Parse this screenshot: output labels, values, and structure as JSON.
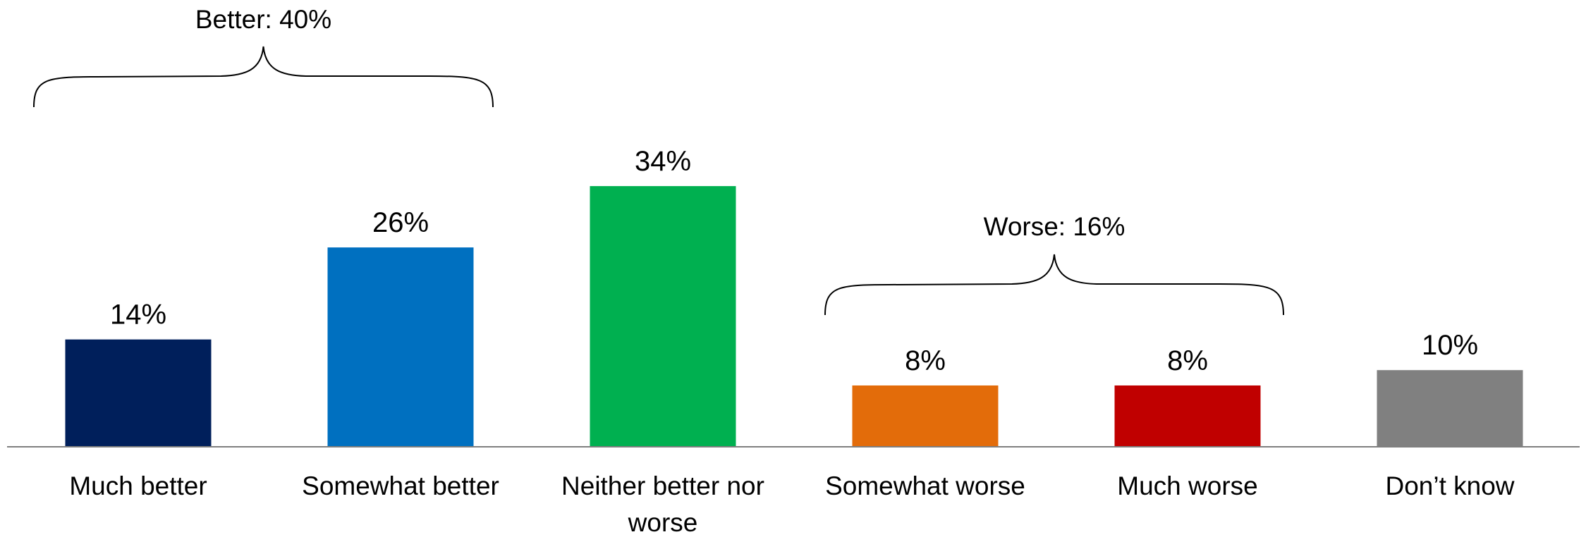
{
  "chart_data": {
    "type": "bar",
    "categories": [
      "Much better",
      "Somewhat better",
      "Neither better nor worse",
      "Somewhat worse",
      "Much worse",
      "Don’t know"
    ],
    "category_label_lines": [
      [
        "Much better"
      ],
      [
        "Somewhat better"
      ],
      [
        "Neither better nor",
        "worse"
      ],
      [
        "Somewhat worse"
      ],
      [
        "Much worse"
      ],
      [
        "Don’t know"
      ]
    ],
    "values": [
      14,
      26,
      34,
      8,
      8,
      10
    ],
    "value_labels": [
      "14%",
      "26%",
      "34%",
      "8%",
      "8%",
      "10%"
    ],
    "colors": [
      "#001f5b",
      "#0070c0",
      "#00b050",
      "#e36c0a",
      "#c00000",
      "#808080"
    ],
    "ylim": [
      0,
      40
    ],
    "grid": false,
    "legend": "none",
    "groups": [
      {
        "label": "Better: 40%",
        "categories": [
          "Much better",
          "Somewhat better"
        ]
      },
      {
        "label": "Worse: 16%",
        "categories": [
          "Somewhat worse",
          "Much worse"
        ]
      }
    ]
  }
}
